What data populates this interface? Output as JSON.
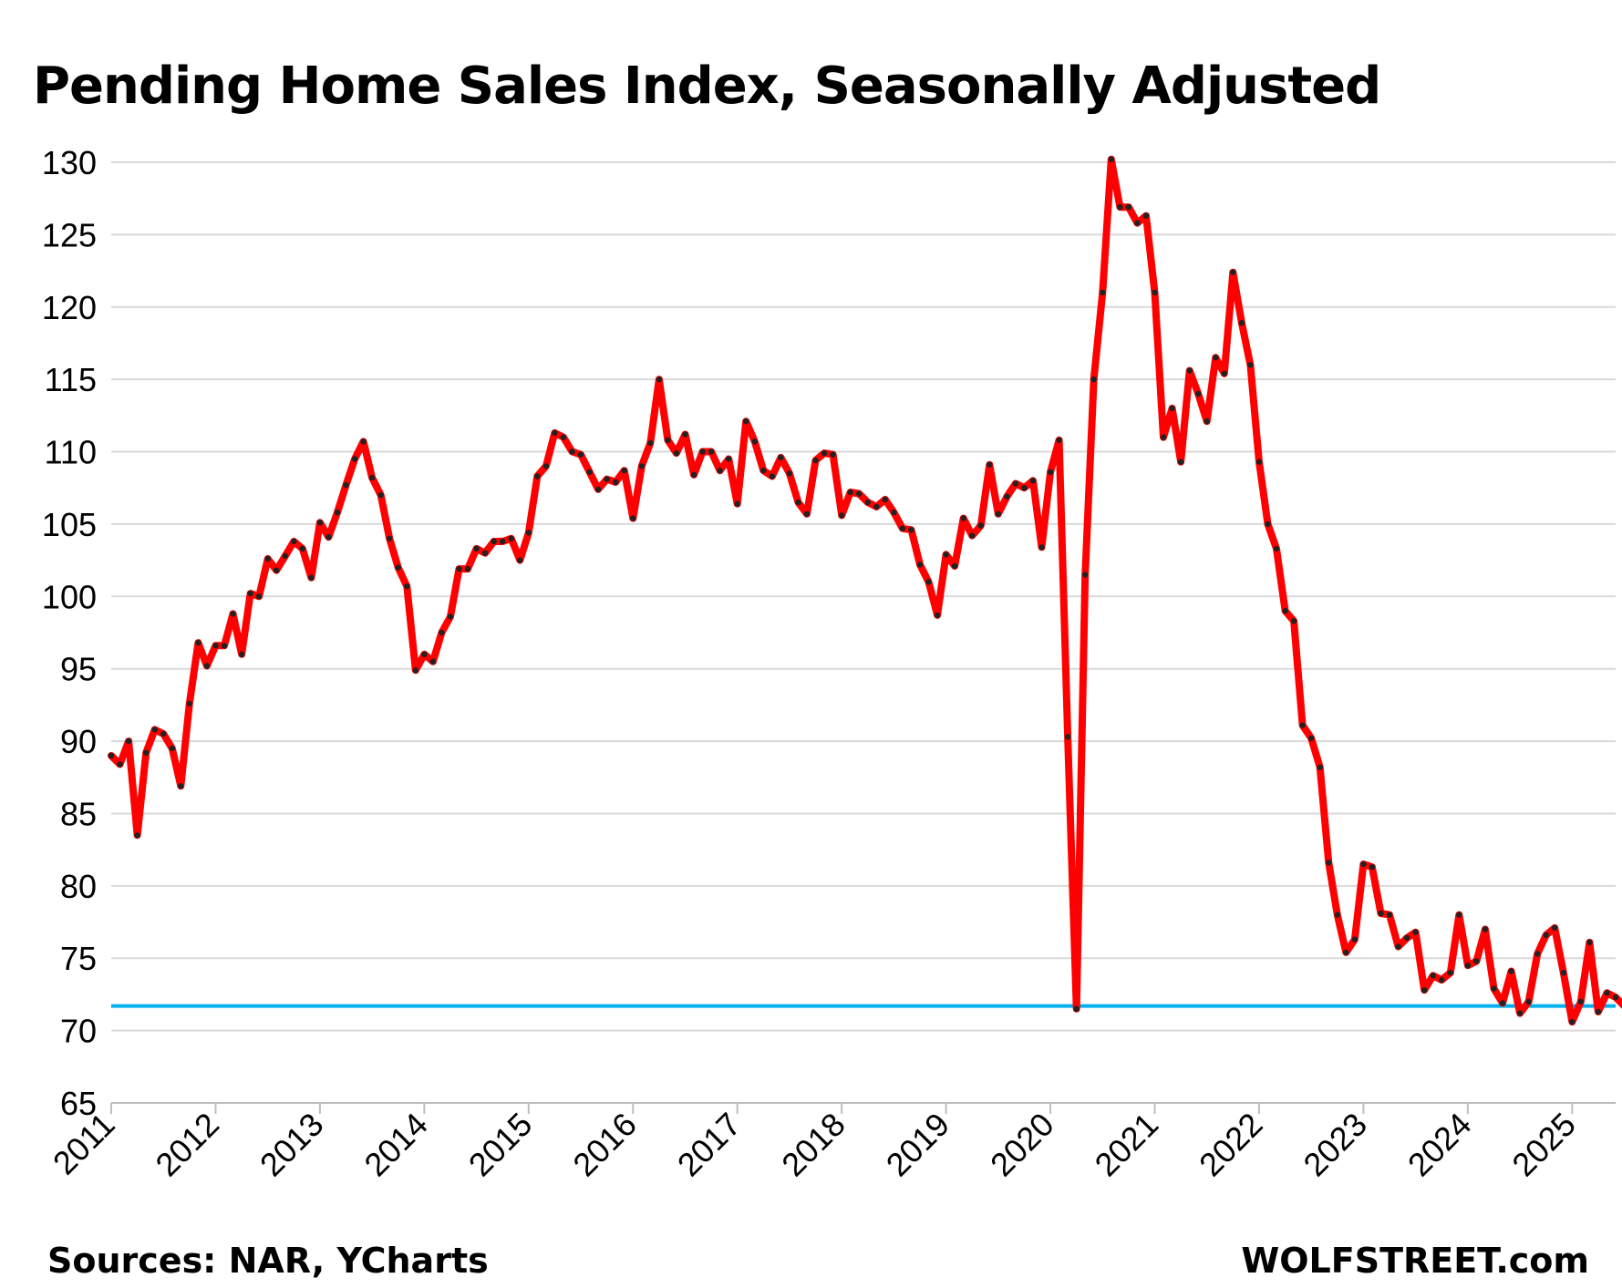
{
  "title": "Pending Home Sales Index, Seasonally Adjusted",
  "source": "Sources: NAR, YCharts",
  "watermark": "WOLFSTREET.com",
  "colors": {
    "line": "#ff0000",
    "markers": "#222222",
    "reference_line": "#00b0f0",
    "grid": "#d9d9d9",
    "axis": "#bfbfbf"
  },
  "chart_data": {
    "type": "line",
    "title": "Pending Home Sales Index, Seasonally Adjusted",
    "xlabel": "",
    "ylabel": "",
    "ylim": [
      65,
      130
    ],
    "yticks": [
      65,
      70,
      75,
      80,
      85,
      90,
      95,
      100,
      105,
      110,
      115,
      120,
      125,
      130
    ],
    "xticks": [
      "2011",
      "2012",
      "2013",
      "2014",
      "2015",
      "2016",
      "2017",
      "2018",
      "2019",
      "2020",
      "2021",
      "2022",
      "2023",
      "2024",
      "2025"
    ],
    "grid": true,
    "legend": "none",
    "x_start": "2011-01",
    "x_end": "2025-06",
    "frequency": "monthly",
    "reference_line": {
      "y": 71.7,
      "color": "#00b0f0"
    },
    "series": [
      {
        "values": [
          89.0,
          88.4,
          90.0,
          83.5,
          89.2,
          90.8,
          90.5,
          89.5,
          86.9,
          92.6,
          96.8,
          95.2,
          96.6,
          96.6,
          98.8,
          96.0,
          100.2,
          100.0,
          102.6,
          101.8,
          102.8,
          103.8,
          103.3,
          101.3,
          105.1,
          104.1,
          105.8,
          107.7,
          109.5,
          110.7,
          108.2,
          107.0,
          104.0,
          102.0,
          100.7,
          94.9,
          96.0,
          95.5,
          97.5,
          98.6,
          101.9,
          101.9,
          103.3,
          103.0,
          103.8,
          103.8,
          104.0,
          102.5,
          104.4,
          108.3,
          109.0,
          111.3,
          111.0,
          110.0,
          109.8,
          108.6,
          107.4,
          108.1,
          107.9,
          108.7,
          105.4,
          109.0,
          110.6,
          115.0,
          110.8,
          109.9,
          111.2,
          108.4,
          110.0,
          110.0,
          108.7,
          109.5,
          106.4,
          112.1,
          110.7,
          108.7,
          108.3,
          109.6,
          108.5,
          106.5,
          105.7,
          109.4,
          109.9,
          109.8,
          105.6,
          107.2,
          107.1,
          106.5,
          106.2,
          106.7,
          105.8,
          104.7,
          104.6,
          102.2,
          101.0,
          98.7,
          102.9,
          102.1,
          105.4,
          104.2,
          104.9,
          109.1,
          105.7,
          106.9,
          107.8,
          107.5,
          108.0,
          103.4,
          108.6,
          110.8,
          90.3,
          71.5,
          101.5,
          115.0,
          121.0,
          130.2,
          126.9,
          126.9,
          125.8,
          126.3,
          121.0,
          111.0,
          113.0,
          109.3,
          115.6,
          114.0,
          112.1,
          116.5,
          115.4,
          122.4,
          118.9,
          116.0,
          109.3,
          105.0,
          103.3,
          99.0,
          98.3,
          91.1,
          90.2,
          88.2,
          81.6,
          78.0,
          75.4,
          76.3,
          81.5,
          81.3,
          78.1,
          78.0,
          75.8,
          76.4,
          76.8,
          72.8,
          73.8,
          73.5,
          74.0,
          78.0,
          74.5,
          74.8,
          77.0,
          72.9,
          71.9,
          74.1,
          71.2,
          72.0,
          75.3,
          76.6,
          77.1,
          74.0,
          70.6,
          72.0,
          76.1,
          71.3,
          72.6,
          72.3,
          71.7
        ]
      }
    ]
  }
}
